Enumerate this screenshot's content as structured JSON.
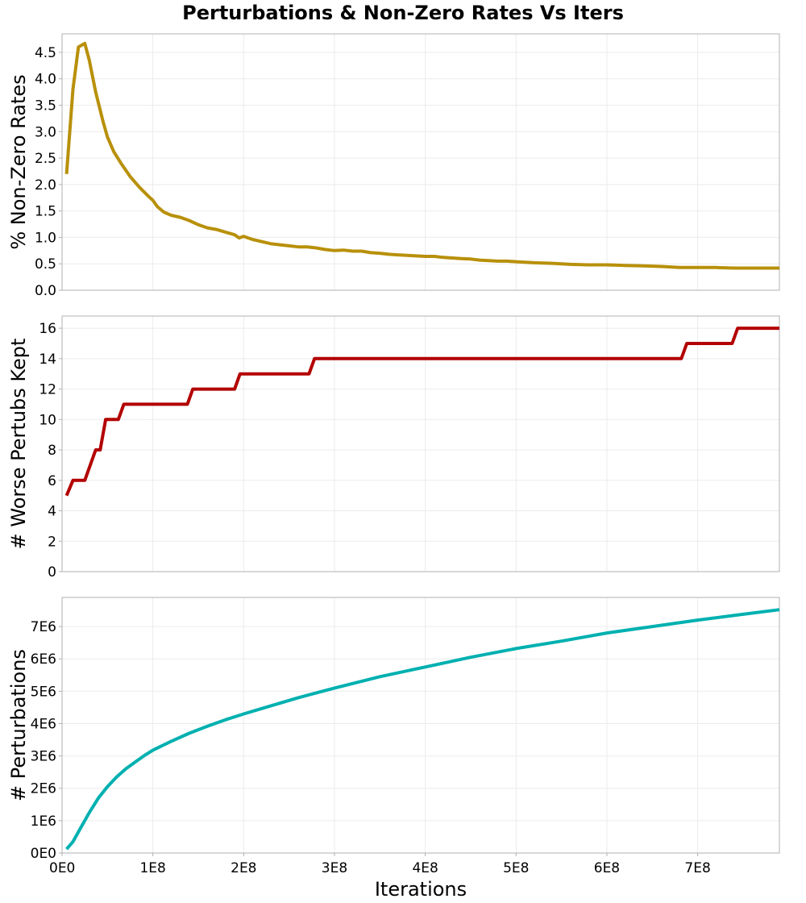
{
  "title": "Perturbations & Non-Zero Rates Vs Iters",
  "chart_data": [
    {
      "type": "line",
      "id": "rates",
      "ylabel": "% Non-Zero Rates",
      "xlabel": "",
      "color": "#b8900a",
      "ylim": [
        0,
        4.85
      ],
      "xlim": [
        0,
        7.9
      ],
      "yticks": [
        0.0,
        0.5,
        1.0,
        1.5,
        2.0,
        2.5,
        3.0,
        3.5,
        4.0,
        4.5
      ],
      "ytick_labels": [
        "0.0",
        "0.5",
        "1.0",
        "1.5",
        "2.0",
        "2.5",
        "3.0",
        "3.5",
        "4.0",
        "4.5"
      ],
      "x": [
        0.05,
        0.12,
        0.18,
        0.25,
        0.3,
        0.37,
        0.45,
        0.5,
        0.57,
        0.65,
        0.75,
        0.85,
        0.95,
        1.0,
        1.05,
        1.12,
        1.2,
        1.3,
        1.4,
        1.5,
        1.6,
        1.7,
        1.8,
        1.9,
        1.95,
        2.0,
        2.1,
        2.2,
        2.3,
        2.4,
        2.5,
        2.6,
        2.7,
        2.8,
        2.9,
        3.0,
        3.1,
        3.2,
        3.3,
        3.4,
        3.5,
        3.6,
        3.7,
        3.8,
        3.9,
        4.0,
        4.1,
        4.2,
        4.3,
        4.4,
        4.5,
        4.6,
        4.7,
        4.8,
        4.9,
        5.0,
        5.2,
        5.4,
        5.6,
        5.8,
        6.0,
        6.2,
        6.4,
        6.6,
        6.8,
        7.0,
        7.2,
        7.4,
        7.6,
        7.9
      ],
      "values": [
        2.2,
        3.8,
        4.6,
        4.67,
        4.35,
        3.75,
        3.2,
        2.9,
        2.62,
        2.4,
        2.15,
        1.95,
        1.78,
        1.7,
        1.58,
        1.48,
        1.42,
        1.38,
        1.32,
        1.24,
        1.18,
        1.15,
        1.1,
        1.05,
        0.99,
        1.02,
        0.96,
        0.92,
        0.88,
        0.86,
        0.84,
        0.82,
        0.82,
        0.8,
        0.77,
        0.75,
        0.76,
        0.74,
        0.74,
        0.71,
        0.7,
        0.68,
        0.67,
        0.66,
        0.65,
        0.64,
        0.64,
        0.62,
        0.61,
        0.6,
        0.59,
        0.57,
        0.56,
        0.55,
        0.55,
        0.54,
        0.52,
        0.51,
        0.49,
        0.48,
        0.48,
        0.47,
        0.46,
        0.45,
        0.43,
        0.43,
        0.43,
        0.42,
        0.42,
        0.42
      ]
    },
    {
      "type": "line",
      "id": "worse",
      "ylabel": "# Worse Pertubs Kept",
      "xlabel": "",
      "color": "#b30000",
      "ylim": [
        0,
        16.8
      ],
      "xlim": [
        0,
        7.9
      ],
      "yticks": [
        0,
        2,
        4,
        6,
        8,
        10,
        12,
        14,
        16
      ],
      "ytick_labels": [
        "0",
        "2",
        "4",
        "6",
        "8",
        "10",
        "12",
        "14",
        "16"
      ],
      "x": [
        0.05,
        0.12,
        0.25,
        0.37,
        0.42,
        0.48,
        0.62,
        0.68,
        1.38,
        1.44,
        1.9,
        1.96,
        2.72,
        2.78,
        6.82,
        6.88,
        7.38,
        7.44,
        7.9
      ],
      "values": [
        5,
        6,
        6,
        8,
        8,
        10,
        10,
        11,
        11,
        12,
        12,
        13,
        13,
        14,
        14,
        15,
        15,
        16,
        16
      ]
    },
    {
      "type": "line",
      "id": "perturbations",
      "ylabel": "# Perturbations",
      "xlabel": "Iterations",
      "color": "#00b0b0",
      "ylim": [
        0,
        7.9
      ],
      "xlim": [
        0,
        7.9
      ],
      "yticks": [
        0,
        1,
        2,
        3,
        4,
        5,
        6,
        7
      ],
      "ytick_labels": [
        "0E0",
        "1E6",
        "2E6",
        "3E6",
        "4E6",
        "5E6",
        "6E6",
        "7E6"
      ],
      "xticks": [
        0,
        1,
        2,
        3,
        4,
        5,
        6,
        7
      ],
      "xtick_labels": [
        "0E0",
        "1E8",
        "2E8",
        "3E8",
        "4E8",
        "5E8",
        "6E8",
        "7E8"
      ],
      "x": [
        0.05,
        0.12,
        0.2,
        0.3,
        0.4,
        0.5,
        0.6,
        0.7,
        0.8,
        0.9,
        1.0,
        1.2,
        1.4,
        1.6,
        1.8,
        2.0,
        2.3,
        2.6,
        3.0,
        3.5,
        4.0,
        4.5,
        5.0,
        5.5,
        6.0,
        6.5,
        7.0,
        7.5,
        7.9
      ],
      "values": [
        0.12,
        0.35,
        0.75,
        1.25,
        1.7,
        2.05,
        2.35,
        2.6,
        2.8,
        3.0,
        3.18,
        3.45,
        3.7,
        3.92,
        4.12,
        4.3,
        4.55,
        4.8,
        5.1,
        5.45,
        5.75,
        6.05,
        6.32,
        6.55,
        6.8,
        7.0,
        7.2,
        7.38,
        7.52
      ]
    }
  ]
}
